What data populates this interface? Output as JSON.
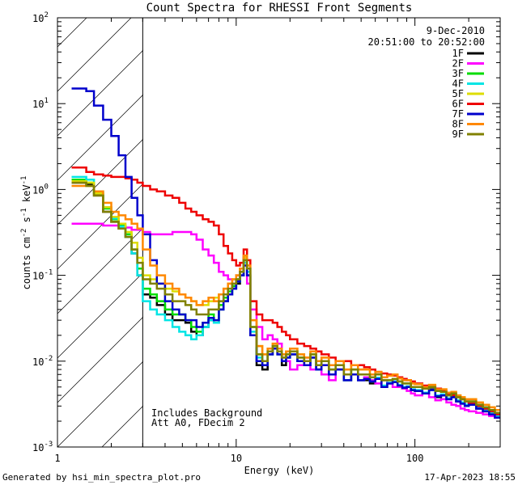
{
  "chart_data": {
    "type": "line",
    "title": "Count Spectra for RHESSI Front Segments",
    "xlabel": "Energy (keV)",
    "ylabel": "counts cm",
    "ylabel_sup1": "-2",
    "ylabel_mid": " s",
    "ylabel_sup2": "-1",
    "ylabel_mid2": " keV",
    "ylabel_sup3": "-1",
    "xscale": "log",
    "yscale": "log",
    "xlim": [
      1,
      300
    ],
    "ylim": [
      0.001,
      100
    ],
    "x_ticks": [
      {
        "value": 1,
        "label": "1"
      },
      {
        "value": 10,
        "label": "10"
      },
      {
        "value": 100,
        "label": "100"
      }
    ],
    "y_ticks": [
      {
        "value": 0.001,
        "base": "10",
        "exp": "-3"
      },
      {
        "value": 0.01,
        "base": "10",
        "exp": "-2"
      },
      {
        "value": 0.1,
        "base": "10",
        "exp": "-1"
      },
      {
        "value": 1,
        "base": "10",
        "exp": "0"
      },
      {
        "value": 10,
        "base": "10",
        "exp": "1"
      },
      {
        "value": 100,
        "base": "10",
        "exp": "2"
      }
    ],
    "hatched_region_max_energy": 3,
    "date": "9-Dec-2010",
    "time_range": "20:51:00 to 20:52:00",
    "annotation_line1": "Includes Background",
    "annotation_line2": "Att A0, FDecim 2",
    "footer_left": "Generated by hsi_min_spectra_plot.pro",
    "footer_right": "17-Apr-2023 18:55",
    "energy_bins": [
      1.2,
      1.33,
      1.45,
      1.6,
      1.8,
      2.0,
      2.2,
      2.4,
      2.6,
      2.8,
      3.0,
      3.3,
      3.6,
      4.0,
      4.4,
      4.8,
      5.2,
      5.6,
      6.0,
      6.5,
      7.0,
      7.5,
      8.0,
      8.5,
      9.0,
      9.5,
      10.0,
      10.5,
      11.0,
      11.5,
      12.0,
      13,
      14,
      15,
      16,
      17,
      18,
      19,
      20,
      22,
      24,
      26,
      28,
      30,
      33,
      36,
      40,
      44,
      48,
      52,
      56,
      60,
      65,
      70,
      75,
      80,
      85,
      90,
      95,
      100,
      110,
      120,
      130,
      140,
      150,
      160,
      170,
      180,
      190,
      200,
      220,
      240,
      260,
      280,
      300
    ],
    "series": [
      {
        "name": "1F",
        "color": "#000000",
        "values": [
          1.2,
          1.2,
          1.15,
          0.85,
          0.55,
          0.42,
          0.35,
          0.28,
          0.18,
          0.1,
          0.06,
          0.055,
          0.045,
          0.035,
          0.03,
          0.03,
          0.028,
          0.022,
          0.02,
          0.025,
          0.03,
          0.028,
          0.04,
          0.05,
          0.06,
          0.07,
          0.08,
          0.1,
          0.15,
          0.1,
          0.02,
          0.009,
          0.008,
          0.012,
          0.014,
          0.012,
          0.009,
          0.011,
          0.012,
          0.01,
          0.009,
          0.011,
          0.008,
          0.009,
          0.007,
          0.008,
          0.006,
          0.007,
          0.006,
          0.006,
          0.0055,
          0.0062,
          0.005,
          0.0055,
          0.0058,
          0.0052,
          0.0048,
          0.005,
          0.0046,
          0.0045,
          0.0042,
          0.0047,
          0.0038,
          0.004,
          0.0036,
          0.0038,
          0.0034,
          0.0032,
          0.003,
          0.0032,
          0.0028,
          0.0026,
          0.0024,
          0.0022,
          0.002
        ]
      },
      {
        "name": "2F",
        "color": "#ff00ff",
        "values": [
          0.4,
          0.4,
          0.4,
          0.4,
          0.38,
          0.38,
          0.36,
          0.36,
          0.34,
          0.34,
          0.32,
          0.3,
          0.3,
          0.3,
          0.32,
          0.32,
          0.32,
          0.3,
          0.26,
          0.2,
          0.17,
          0.14,
          0.11,
          0.1,
          0.09,
          0.07,
          0.1,
          0.12,
          0.15,
          0.08,
          0.04,
          0.025,
          0.018,
          0.02,
          0.018,
          0.016,
          0.012,
          0.01,
          0.008,
          0.009,
          0.011,
          0.008,
          0.009,
          0.007,
          0.006,
          0.008,
          0.007,
          0.007,
          0.006,
          0.0065,
          0.006,
          0.0055,
          0.006,
          0.0055,
          0.005,
          0.005,
          0.0048,
          0.0045,
          0.0042,
          0.004,
          0.0042,
          0.0038,
          0.0035,
          0.0036,
          0.0033,
          0.0031,
          0.003,
          0.0028,
          0.0027,
          0.0026,
          0.0025,
          0.0024,
          0.0023,
          0.0022,
          0.0021
        ]
      },
      {
        "name": "3F",
        "color": "#00dd00",
        "values": [
          1.3,
          1.3,
          1.2,
          0.9,
          0.6,
          0.45,
          0.38,
          0.3,
          0.2,
          0.12,
          0.07,
          0.06,
          0.05,
          0.04,
          0.035,
          0.035,
          0.03,
          0.025,
          0.022,
          0.028,
          0.035,
          0.03,
          0.045,
          0.055,
          0.065,
          0.075,
          0.09,
          0.11,
          0.16,
          0.12,
          0.025,
          0.012,
          0.01,
          0.013,
          0.015,
          0.013,
          0.011,
          0.012,
          0.013,
          0.011,
          0.01,
          0.012,
          0.009,
          0.01,
          0.008,
          0.009,
          0.007,
          0.008,
          0.007,
          0.007,
          0.0065,
          0.007,
          0.006,
          0.006,
          0.0062,
          0.0058,
          0.0055,
          0.0055,
          0.005,
          0.005,
          0.0048,
          0.005,
          0.0045,
          0.0044,
          0.004,
          0.0042,
          0.0038,
          0.0036,
          0.0034,
          0.0034,
          0.0031,
          0.0029,
          0.0027,
          0.0025,
          0.0023
        ]
      },
      {
        "name": "4F",
        "color": "#00e5e5",
        "values": [
          1.4,
          1.4,
          1.3,
          0.95,
          0.62,
          0.46,
          0.37,
          0.28,
          0.18,
          0.1,
          0.05,
          0.04,
          0.035,
          0.03,
          0.025,
          0.022,
          0.02,
          0.018,
          0.02,
          0.025,
          0.03,
          0.028,
          0.04,
          0.05,
          0.06,
          0.07,
          0.085,
          0.1,
          0.14,
          0.11,
          0.022,
          0.011,
          0.009,
          0.012,
          0.014,
          0.012,
          0.01,
          0.011,
          0.012,
          0.01,
          0.009,
          0.011,
          0.008,
          0.009,
          0.007,
          0.008,
          0.006,
          0.007,
          0.006,
          0.0062,
          0.0058,
          0.0064,
          0.0052,
          0.0056,
          0.0058,
          0.0053,
          0.005,
          0.0051,
          0.0047,
          0.0046,
          0.0043,
          0.0046,
          0.004,
          0.0041,
          0.0037,
          0.0038,
          0.0035,
          0.0033,
          0.0031,
          0.0032,
          0.0029,
          0.0027,
          0.0025,
          0.0023,
          0.0021
        ]
      },
      {
        "name": "5F",
        "color": "#dddd00",
        "values": [
          1.25,
          1.25,
          1.2,
          0.9,
          0.62,
          0.48,
          0.4,
          0.32,
          0.24,
          0.16,
          0.1,
          0.09,
          0.08,
          0.07,
          0.065,
          0.06,
          0.055,
          0.05,
          0.045,
          0.045,
          0.05,
          0.055,
          0.06,
          0.07,
          0.08,
          0.09,
          0.1,
          0.12,
          0.16,
          0.13,
          0.03,
          0.015,
          0.012,
          0.014,
          0.016,
          0.014,
          0.012,
          0.013,
          0.014,
          0.012,
          0.011,
          0.013,
          0.01,
          0.011,
          0.009,
          0.01,
          0.008,
          0.009,
          0.008,
          0.008,
          0.007,
          0.0075,
          0.0065,
          0.0068,
          0.007,
          0.0063,
          0.006,
          0.006,
          0.0055,
          0.0054,
          0.005,
          0.0053,
          0.0047,
          0.0047,
          0.0043,
          0.0044,
          0.004,
          0.0038,
          0.0036,
          0.0036,
          0.0033,
          0.0031,
          0.0029,
          0.0027,
          0.0025
        ]
      },
      {
        "name": "6F",
        "color": "#ee0000",
        "values": [
          1.8,
          1.8,
          1.6,
          1.5,
          1.45,
          1.4,
          1.4,
          1.35,
          1.3,
          1.2,
          1.1,
          1.0,
          0.95,
          0.85,
          0.8,
          0.7,
          0.6,
          0.55,
          0.5,
          0.45,
          0.42,
          0.38,
          0.3,
          0.22,
          0.18,
          0.15,
          0.13,
          0.14,
          0.2,
          0.15,
          0.05,
          0.035,
          0.03,
          0.03,
          0.028,
          0.025,
          0.022,
          0.02,
          0.018,
          0.016,
          0.015,
          0.014,
          0.013,
          0.012,
          0.011,
          0.01,
          0.01,
          0.009,
          0.009,
          0.0085,
          0.008,
          0.0075,
          0.0072,
          0.007,
          0.0068,
          0.0065,
          0.0062,
          0.006,
          0.0058,
          0.0055,
          0.0052,
          0.005,
          0.0048,
          0.0045,
          0.0042,
          0.004,
          0.0038,
          0.0036,
          0.0034,
          0.0032,
          0.003,
          0.0028,
          0.0026,
          0.0024,
          0.0022
        ]
      },
      {
        "name": "7F",
        "color": "#0000cc",
        "values": [
          15,
          15,
          14,
          9.5,
          6.5,
          4.2,
          2.5,
          1.4,
          0.8,
          0.5,
          0.3,
          0.15,
          0.08,
          0.05,
          0.04,
          0.035,
          0.03,
          0.03,
          0.025,
          0.028,
          0.032,
          0.03,
          0.04,
          0.05,
          0.06,
          0.07,
          0.085,
          0.1,
          0.13,
          0.1,
          0.02,
          0.01,
          0.009,
          0.012,
          0.014,
          0.012,
          0.01,
          0.011,
          0.012,
          0.01,
          0.009,
          0.011,
          0.008,
          0.009,
          0.007,
          0.008,
          0.006,
          0.007,
          0.006,
          0.0062,
          0.0058,
          0.0062,
          0.005,
          0.0055,
          0.0057,
          0.0052,
          0.0049,
          0.005,
          0.0046,
          0.0045,
          0.0042,
          0.0046,
          0.0039,
          0.004,
          0.0036,
          0.0038,
          0.0034,
          0.0032,
          0.003,
          0.0031,
          0.0028,
          0.0026,
          0.0024,
          0.0022,
          0.002
        ]
      },
      {
        "name": "8F",
        "color": "#ff8800",
        "values": [
          1.1,
          1.1,
          1.1,
          0.95,
          0.7,
          0.55,
          0.5,
          0.45,
          0.4,
          0.35,
          0.2,
          0.13,
          0.1,
          0.08,
          0.07,
          0.06,
          0.055,
          0.05,
          0.045,
          0.05,
          0.055,
          0.05,
          0.06,
          0.07,
          0.08,
          0.09,
          0.1,
          0.12,
          0.17,
          0.13,
          0.03,
          0.015,
          0.012,
          0.014,
          0.016,
          0.014,
          0.012,
          0.013,
          0.014,
          0.012,
          0.011,
          0.013,
          0.01,
          0.011,
          0.009,
          0.01,
          0.008,
          0.009,
          0.008,
          0.008,
          0.007,
          0.0075,
          0.0065,
          0.0068,
          0.007,
          0.0063,
          0.006,
          0.006,
          0.0055,
          0.0054,
          0.005,
          0.0053,
          0.0047,
          0.0047,
          0.0043,
          0.0044,
          0.004,
          0.0038,
          0.0036,
          0.0036,
          0.0033,
          0.0031,
          0.0029,
          0.0027,
          0.0025
        ]
      },
      {
        "name": "9F",
        "color": "#808000",
        "values": [
          1.2,
          1.2,
          1.1,
          0.85,
          0.55,
          0.42,
          0.35,
          0.28,
          0.2,
          0.14,
          0.09,
          0.08,
          0.07,
          0.06,
          0.05,
          0.05,
          0.045,
          0.04,
          0.035,
          0.035,
          0.04,
          0.04,
          0.05,
          0.06,
          0.07,
          0.08,
          0.09,
          0.11,
          0.15,
          0.12,
          0.025,
          0.012,
          0.01,
          0.013,
          0.015,
          0.013,
          0.011,
          0.012,
          0.013,
          0.011,
          0.01,
          0.012,
          0.009,
          0.01,
          0.008,
          0.009,
          0.007,
          0.008,
          0.007,
          0.007,
          0.0065,
          0.007,
          0.006,
          0.006,
          0.0062,
          0.0058,
          0.0055,
          0.0055,
          0.005,
          0.005,
          0.0048,
          0.005,
          0.0045,
          0.0044,
          0.004,
          0.0042,
          0.0038,
          0.0036,
          0.0034,
          0.0034,
          0.0031,
          0.0029,
          0.0027,
          0.0025,
          0.0023
        ]
      }
    ]
  }
}
